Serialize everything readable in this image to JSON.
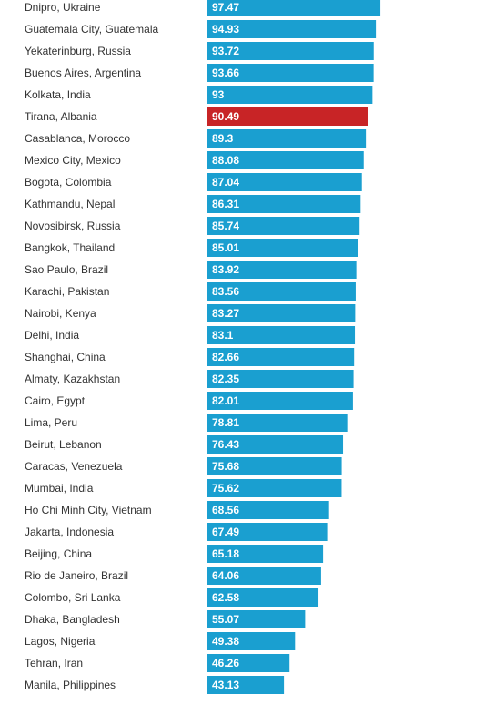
{
  "chart_data": {
    "type": "bar",
    "orientation": "horizontal",
    "categories": [
      "Dnipro, Ukraine",
      "Guatemala City, Guatemala",
      "Yekaterinburg, Russia",
      "Buenos Aires, Argentina",
      "Kolkata, India",
      "Tirana, Albania",
      "Casablanca, Morocco",
      "Mexico City, Mexico",
      "Bogota, Colombia",
      "Kathmandu, Nepal",
      "Novosibirsk, Russia",
      "Bangkok, Thailand",
      "Sao Paulo, Brazil",
      "Karachi, Pakistan",
      "Nairobi, Kenya",
      "Delhi, India",
      "Shanghai, China",
      "Almaty, Kazakhstan",
      "Cairo, Egypt",
      "Lima, Peru",
      "Beirut, Lebanon",
      "Caracas, Venezuela",
      "Mumbai, India",
      "Ho Chi Minh City, Vietnam",
      "Jakarta, Indonesia",
      "Beijing, China",
      "Rio de Janeiro, Brazil",
      "Colombo, Sri Lanka",
      "Dhaka, Bangladesh",
      "Lagos, Nigeria",
      "Tehran, Iran",
      "Manila, Philippines"
    ],
    "values": [
      97.47,
      94.93,
      93.72,
      93.66,
      93,
      90.49,
      89.3,
      88.08,
      87.04,
      86.31,
      85.74,
      85.01,
      83.92,
      83.56,
      83.27,
      83.1,
      82.66,
      82.35,
      82.01,
      78.81,
      76.43,
      75.68,
      75.62,
      68.56,
      67.49,
      65.18,
      64.06,
      62.58,
      55.07,
      49.38,
      46.26,
      43.13
    ],
    "value_labels": [
      "97.47",
      "94.93",
      "93.72",
      "93.66",
      "93",
      "90.49",
      "89.3",
      "88.08",
      "87.04",
      "86.31",
      "85.74",
      "85.01",
      "83.92",
      "83.56",
      "83.27",
      "83.1",
      "82.66",
      "82.35",
      "82.01",
      "78.81",
      "76.43",
      "75.68",
      "75.62",
      "68.56",
      "67.49",
      "65.18",
      "64.06",
      "62.58",
      "55.07",
      "49.38",
      "46.26",
      "43.13"
    ],
    "highlight_index": 5,
    "colors": {
      "bar": "#1a9fd0",
      "highlight": "#c82426"
    },
    "xlim": [
      0,
      100
    ],
    "grid": false,
    "legend": "none"
  }
}
